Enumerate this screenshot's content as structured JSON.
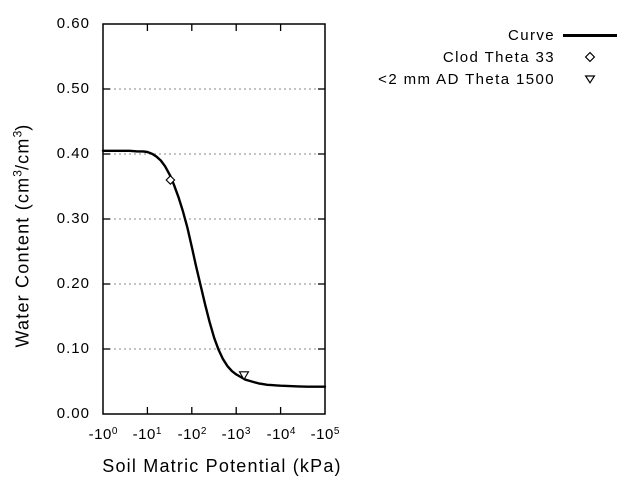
{
  "colors": {
    "curve": "#000000",
    "grid": "#888888",
    "text": "#000000",
    "background": "#ffffff",
    "marker_fill": "#ffffff"
  },
  "legend": {
    "entries": [
      {
        "label": "Curve",
        "marker": "line"
      },
      {
        "label": "Clod Theta 33",
        "marker": "diamond"
      },
      {
        "label": "<2 mm AD Theta 1500",
        "marker": "triangle-down"
      }
    ]
  },
  "chart_data": {
    "type": "line",
    "title": "",
    "xlabel": "Soil Matric Potential (kPa)",
    "ylabel": "Water Content (cm3/cm3)",
    "ylabel_parts": [
      "Water Content (cm",
      "3",
      "/cm",
      "3",
      ")"
    ],
    "x_scale": "negative log axis: tick -10^n means -(10^n) kPa; data stored as |kPa| magnitude",
    "xlim_abs_kpa": [
      1,
      100000
    ],
    "ylim": [
      0.0,
      0.6
    ],
    "grid": "horizontal dotted gridlines only",
    "legend_position": "outside top-right",
    "x_ticks": [
      {
        "base": "-10",
        "exp": "0"
      },
      {
        "base": "-10",
        "exp": "1"
      },
      {
        "base": "-10",
        "exp": "2"
      },
      {
        "base": "-10",
        "exp": "3"
      },
      {
        "base": "-10",
        "exp": "4"
      },
      {
        "base": "-10",
        "exp": "5"
      }
    ],
    "y_ticks": [
      "0.60",
      "0.50",
      "0.40",
      "0.30",
      "0.20",
      "0.10",
      "0.00"
    ],
    "y_gridlines": [
      0.5,
      0.4,
      0.3,
      0.2,
      0.1
    ],
    "series": [
      {
        "name": "Curve",
        "type": "line",
        "points": [
          [
            1,
            0.405
          ],
          [
            1.6,
            0.405
          ],
          [
            2.5,
            0.405
          ],
          [
            4,
            0.405
          ],
          [
            6,
            0.404
          ],
          [
            8,
            0.404
          ],
          [
            10,
            0.403
          ],
          [
            13,
            0.4
          ],
          [
            16,
            0.396
          ],
          [
            20,
            0.39
          ],
          [
            25,
            0.381
          ],
          [
            33,
            0.366
          ],
          [
            40,
            0.352
          ],
          [
            50,
            0.334
          ],
          [
            63,
            0.312
          ],
          [
            80,
            0.286
          ],
          [
            100,
            0.257
          ],
          [
            125,
            0.227
          ],
          [
            160,
            0.196
          ],
          [
            200,
            0.168
          ],
          [
            250,
            0.142
          ],
          [
            320,
            0.117
          ],
          [
            400,
            0.099
          ],
          [
            500,
            0.085
          ],
          [
            630,
            0.074
          ],
          [
            800,
            0.066
          ],
          [
            1000,
            0.061
          ],
          [
            1250,
            0.057
          ],
          [
            1600,
            0.053
          ],
          [
            2000,
            0.051
          ],
          [
            2500,
            0.049
          ],
          [
            3200,
            0.047
          ],
          [
            4000,
            0.046
          ],
          [
            5000,
            0.045
          ],
          [
            6300,
            0.0445
          ],
          [
            8000,
            0.044
          ],
          [
            10000,
            0.0435
          ],
          [
            16000,
            0.043
          ],
          [
            25000,
            0.0425
          ],
          [
            40000,
            0.042
          ],
          [
            63000,
            0.042
          ],
          [
            100000,
            0.042
          ]
        ]
      },
      {
        "name": "Clod Theta 33",
        "type": "scatter",
        "marker": "diamond",
        "points": [
          [
            33,
            0.36
          ]
        ]
      },
      {
        "name": "<2 mm AD Theta 1500",
        "type": "scatter",
        "marker": "triangle-down",
        "points": [
          [
            1500,
            0.06
          ]
        ]
      }
    ]
  }
}
